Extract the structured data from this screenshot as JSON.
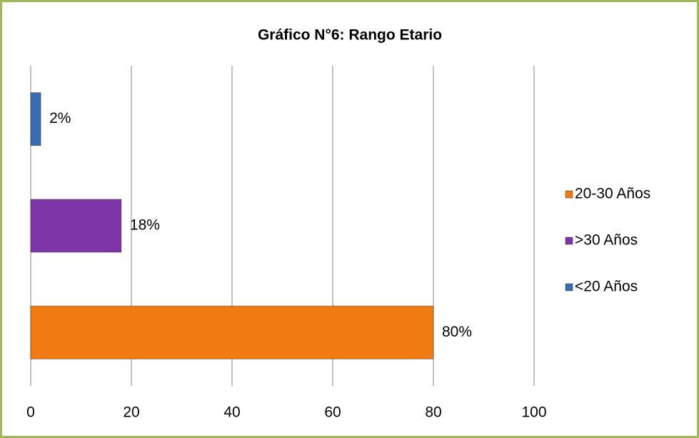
{
  "chart_data": {
    "type": "bar",
    "orientation": "horizontal",
    "title": "Gráfico N°6: Rango Etario",
    "categories": [
      null
    ],
    "series": [
      {
        "name": "20-30 Años",
        "color": "#f07b12",
        "values": [
          80
        ],
        "value_labels": [
          "80%"
        ]
      },
      {
        "name": ">30 Años",
        "color": "#7e35a8",
        "values": [
          18
        ],
        "value_labels": [
          "18%"
        ]
      },
      {
        "name": "<20 Años",
        "color": "#3a6db0",
        "values": [
          2
        ],
        "value_labels": [
          "2%"
        ]
      }
    ],
    "xlim": [
      0,
      100
    ],
    "xticks": [
      0,
      20,
      40,
      60,
      80,
      100
    ],
    "grid": true,
    "legend": "right"
  }
}
